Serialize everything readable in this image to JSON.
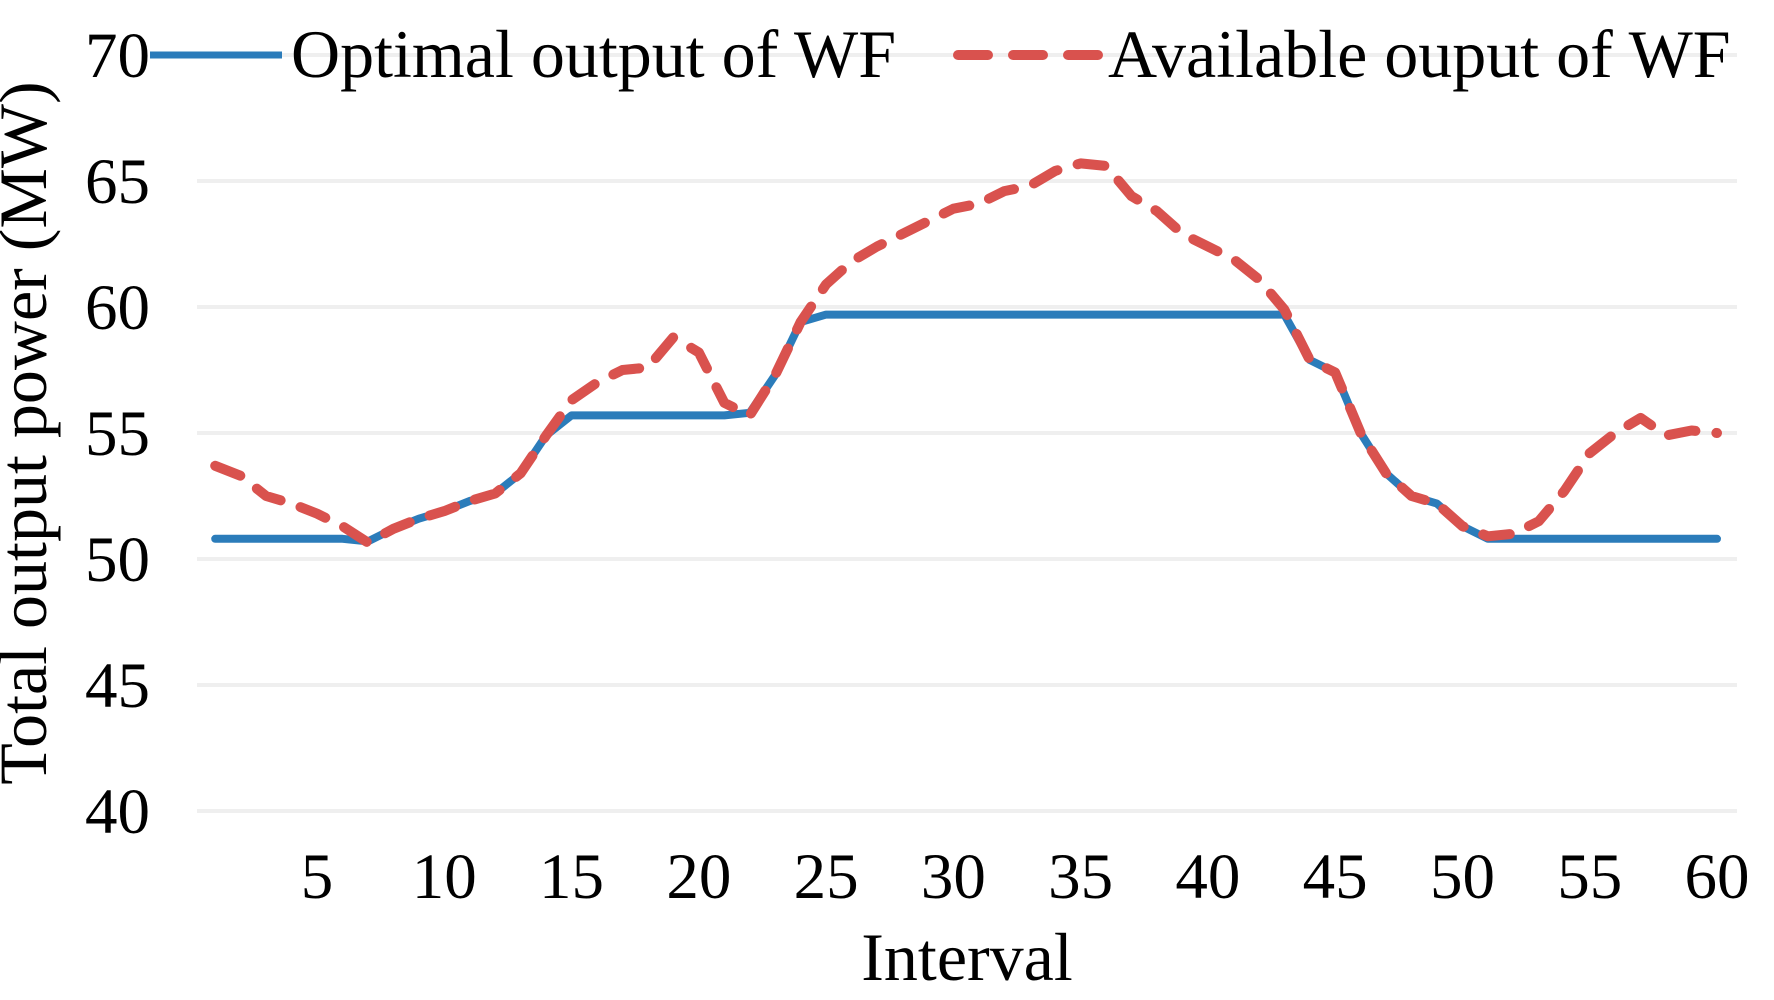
{
  "figure": {
    "background": "#ffffff",
    "colors": {
      "optimal": "#2b7cba",
      "available": "#d9524e",
      "gridline": "#efefef",
      "text": "#000000"
    }
  },
  "legend": {
    "position": "top",
    "items": [
      {
        "label": "Optimal output of WF",
        "series": "optimal",
        "style": "solid"
      },
      {
        "label": "Available ouput of WF",
        "series": "available",
        "style": "dashed"
      }
    ]
  },
  "chart_data": {
    "type": "line",
    "title": "",
    "xlabel": "Interval",
    "ylabel": "Total output power (MW)",
    "xlim": [
      1,
      60
    ],
    "ylim": [
      40,
      70
    ],
    "x_ticks": [
      5,
      10,
      15,
      20,
      25,
      30,
      35,
      40,
      45,
      50,
      55,
      60
    ],
    "y_ticks": [
      40,
      45,
      50,
      55,
      60,
      65,
      70
    ],
    "grid": "horizontal",
    "legend_position": "top",
    "x_unit": "interval index 1-60, one value per interval",
    "series": [
      {
        "name": "Optimal output of WF",
        "style": "solid",
        "color_key": "optimal",
        "values": [
          50.8,
          50.8,
          50.8,
          50.8,
          50.8,
          50.8,
          50.7,
          51.2,
          51.6,
          51.9,
          52.3,
          52.6,
          53.4,
          54.9,
          55.7,
          55.7,
          55.7,
          55.7,
          55.7,
          55.7,
          55.7,
          55.8,
          57.3,
          59.4,
          59.7,
          59.7,
          59.7,
          59.7,
          59.7,
          59.7,
          59.7,
          59.7,
          59.7,
          59.7,
          59.7,
          59.7,
          59.7,
          59.7,
          59.7,
          59.7,
          59.7,
          59.7,
          59.7,
          57.9,
          57.4,
          55.0,
          53.4,
          52.5,
          52.2,
          51.3,
          50.8,
          50.8,
          50.8,
          50.8,
          50.8,
          50.8,
          50.8,
          50.8,
          50.8,
          50.8
        ]
      },
      {
        "name": "Available ouput of WF",
        "style": "dashed",
        "color_key": "available",
        "values": [
          53.7,
          53.3,
          52.5,
          52.2,
          51.8,
          51.3,
          50.65,
          51.2,
          51.6,
          51.9,
          52.3,
          52.6,
          53.4,
          54.9,
          56.3,
          57.0,
          57.5,
          57.6,
          58.8,
          58.2,
          56.2,
          55.7,
          57.3,
          59.4,
          60.9,
          61.8,
          62.4,
          62.9,
          63.4,
          63.9,
          64.1,
          64.6,
          64.8,
          65.4,
          65.7,
          65.6,
          64.4,
          63.8,
          62.9,
          62.4,
          61.9,
          61.1,
          59.9,
          57.9,
          57.4,
          55.0,
          53.4,
          52.5,
          52.2,
          51.3,
          50.9,
          51.0,
          51.5,
          52.7,
          54.2,
          55.0,
          55.6,
          54.9,
          55.1,
          55.0
        ]
      }
    ]
  }
}
